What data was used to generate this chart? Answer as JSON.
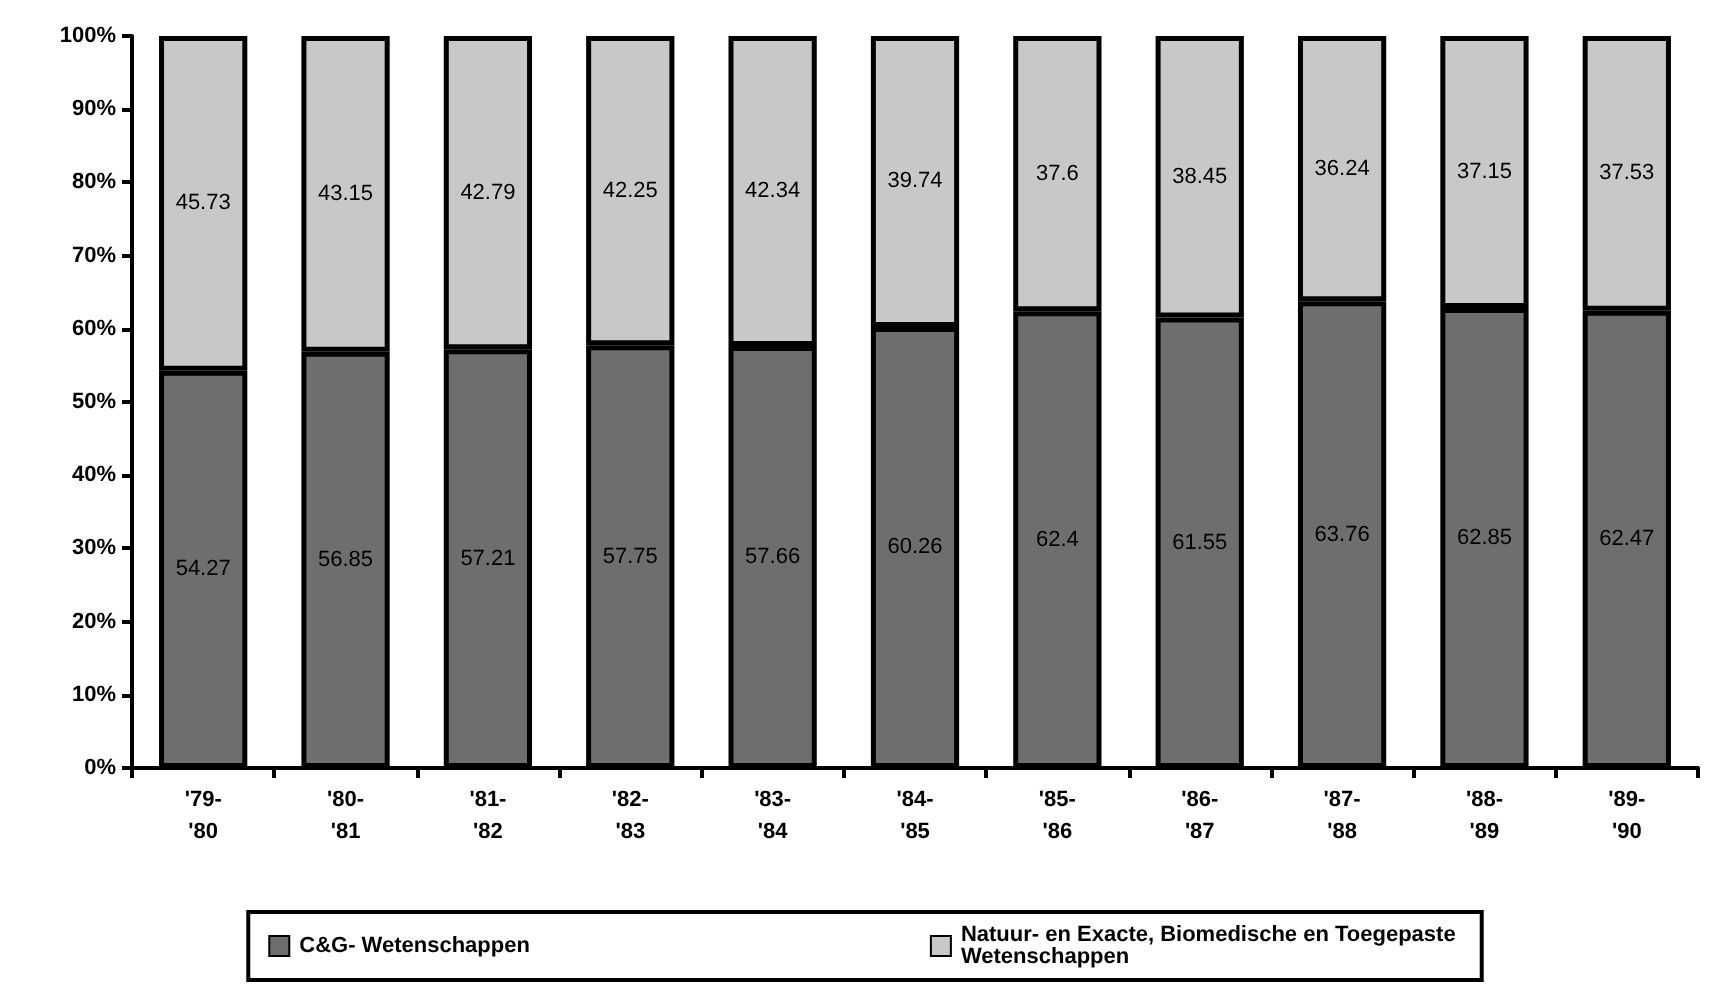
{
  "chart_data": {
    "type": "bar",
    "stacked": true,
    "data_labels": true,
    "legend": "bottom",
    "grid": false,
    "categories": [
      "'79-\n'80",
      "'80-\n'81",
      "'81-\n'82",
      "'82-\n'83",
      "'83-\n'84",
      "'84-\n'85",
      "'85-\n'86",
      "'86-\n'87",
      "'87-\n'88",
      "'88-\n'89",
      "'89-\n'90"
    ],
    "ylim": [
      0,
      100
    ],
    "yticks": [
      {
        "value": 0,
        "label": "0%"
      },
      {
        "value": 10,
        "label": "10%"
      },
      {
        "value": 20,
        "label": "20%"
      },
      {
        "value": 30,
        "label": "30%"
      },
      {
        "value": 40,
        "label": "40%"
      },
      {
        "value": 50,
        "label": "50%"
      },
      {
        "value": 60,
        "label": "60%"
      },
      {
        "value": 70,
        "label": "70%"
      },
      {
        "value": 80,
        "label": "80%"
      },
      {
        "value": 90,
        "label": "90%"
      },
      {
        "value": 100,
        "label": "100%"
      }
    ],
    "series": [
      {
        "name": "C&G- Wetenschappen",
        "color": "#6e6e6e",
        "values": [
          54.27,
          56.85,
          57.21,
          57.75,
          57.66,
          60.26,
          62.4,
          61.55,
          63.76,
          62.85,
          62.47
        ]
      },
      {
        "name": "Natuur- en Exacte, Biomedische en Toegepaste Wetenschappen",
        "color": "#c8c8c8",
        "values": [
          45.73,
          43.15,
          42.79,
          42.25,
          42.34,
          39.74,
          37.6,
          38.45,
          36.24,
          37.15,
          37.53
        ]
      }
    ]
  }
}
